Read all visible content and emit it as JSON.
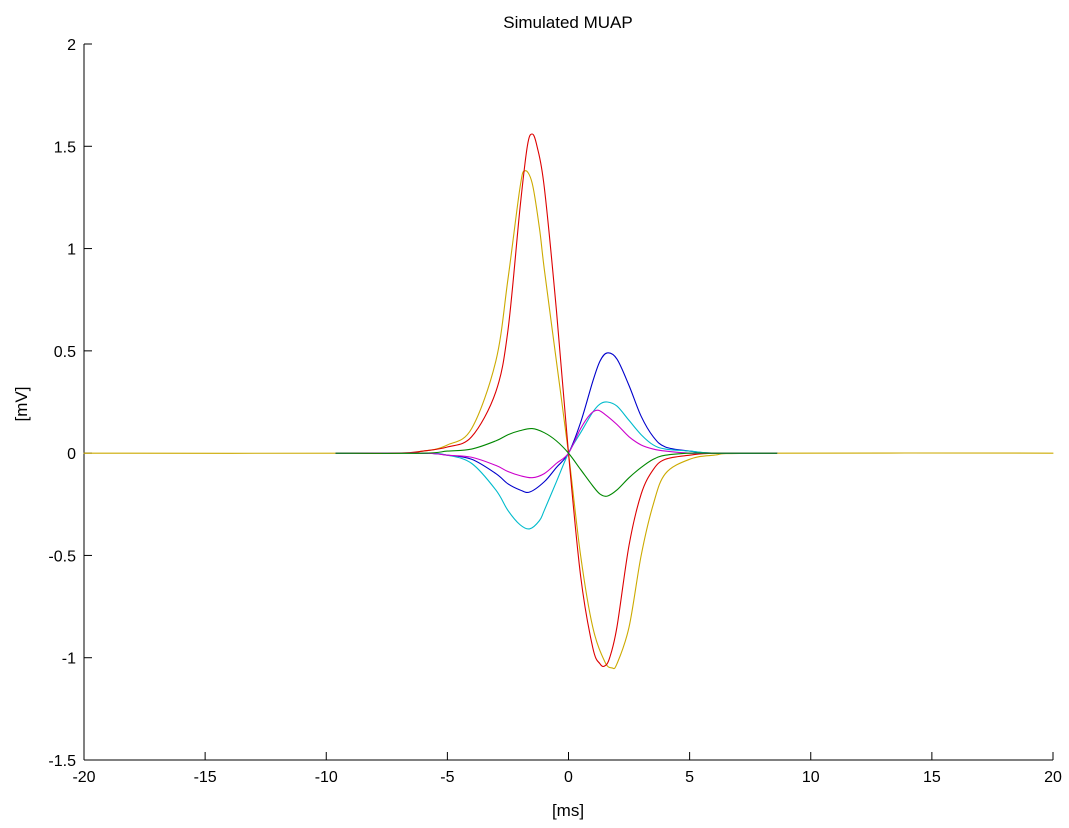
{
  "chart_data": {
    "type": "line",
    "title": "Simulated MUAP",
    "xlabel": "[ms]",
    "ylabel": "[mV]",
    "xlim": [
      -20,
      20
    ],
    "ylim": [
      -1.5,
      2
    ],
    "xticks": [
      -20,
      -15,
      -10,
      -5,
      0,
      5,
      10,
      15,
      20
    ],
    "xtick_labels": [
      "-20",
      "-15",
      "-10",
      "-5",
      "0",
      "5",
      "10",
      "15",
      "20"
    ],
    "yticks": [
      -1.5,
      -1,
      -0.5,
      0,
      0.5,
      1,
      1.5,
      2
    ],
    "ytick_labels": [
      "-1.5",
      "-1",
      "-0.5",
      "0",
      "0.5",
      "1",
      "1.5",
      "2"
    ],
    "grid": false,
    "series": [
      {
        "color": "#ccaa00",
        "x": [
          -20,
          -8,
          -6,
          -5,
          -4,
          -3,
          -2.5,
          -2,
          -1.8,
          -1.5,
          -1.2,
          -1,
          -0.5,
          0,
          0.5,
          1,
          1.5,
          1.8,
          2,
          2.5,
          3,
          3.5,
          4,
          5,
          6,
          8,
          20
        ],
        "y": [
          0,
          0,
          0.01,
          0.04,
          0.12,
          0.45,
          0.85,
          1.3,
          1.38,
          1.32,
          1.1,
          0.9,
          0.45,
          0,
          -0.5,
          -0.85,
          -1.02,
          -1.05,
          -1.03,
          -0.85,
          -0.5,
          -0.25,
          -0.1,
          -0.03,
          -0.01,
          0,
          0
        ]
      },
      {
        "color": "#dd0000",
        "x": [
          -9.6,
          -7,
          -6,
          -5,
          -4,
          -3,
          -2.5,
          -2,
          -1.7,
          -1.5,
          -1.3,
          -1,
          -0.5,
          0,
          0.5,
          1,
          1.3,
          1.5,
          1.7,
          2,
          2.5,
          3,
          3.5,
          4,
          5,
          6,
          8.6
        ],
        "y": [
          0,
          0,
          0.01,
          0.03,
          0.08,
          0.3,
          0.6,
          1.2,
          1.5,
          1.56,
          1.5,
          1.3,
          0.7,
          0,
          -0.6,
          -0.95,
          -1.03,
          -1.04,
          -1.0,
          -0.85,
          -0.45,
          -0.2,
          -0.08,
          -0.03,
          -0.01,
          0,
          0
        ]
      },
      {
        "color": "#0000cc",
        "x": [
          -9.6,
          -6,
          -5,
          -4,
          -3,
          -2.5,
          -2,
          -1.6,
          -1,
          -0.5,
          0,
          0.5,
          1,
          1.3,
          1.6,
          2,
          2.5,
          3,
          3.5,
          4,
          5,
          6,
          8.6
        ],
        "y": [
          0,
          0,
          -0.01,
          -0.03,
          -0.1,
          -0.15,
          -0.18,
          -0.19,
          -0.14,
          -0.07,
          0,
          0.15,
          0.35,
          0.45,
          0.49,
          0.46,
          0.33,
          0.18,
          0.08,
          0.03,
          0.01,
          0,
          0
        ]
      },
      {
        "color": "#00bbcc",
        "x": [
          -9.6,
          -6,
          -5,
          -4,
          -3,
          -2.5,
          -2,
          -1.6,
          -1.2,
          -1,
          -0.5,
          0,
          0.5,
          1,
          1.3,
          1.6,
          2,
          2.5,
          3,
          3.5,
          4,
          5,
          6,
          8.6
        ],
        "y": [
          0,
          0,
          -0.01,
          -0.05,
          -0.18,
          -0.28,
          -0.35,
          -0.37,
          -0.33,
          -0.28,
          -0.14,
          0,
          0.1,
          0.2,
          0.24,
          0.25,
          0.23,
          0.16,
          0.09,
          0.04,
          0.02,
          0.01,
          0,
          0
        ]
      },
      {
        "color": "#cc00cc",
        "x": [
          -9.6,
          -6,
          -5,
          -4,
          -3,
          -2.5,
          -2,
          -1.5,
          -1,
          -0.5,
          0,
          0.5,
          0.9,
          1.2,
          1.5,
          2,
          2.5,
          3,
          3.5,
          4,
          5,
          6,
          8.6
        ],
        "y": [
          0,
          0,
          -0.01,
          -0.02,
          -0.06,
          -0.09,
          -0.11,
          -0.12,
          -0.1,
          -0.05,
          0,
          0.12,
          0.19,
          0.21,
          0.19,
          0.14,
          0.08,
          0.04,
          0.02,
          0.01,
          0,
          0,
          0
        ]
      },
      {
        "color": "#008800",
        "x": [
          -9.6,
          -6,
          -5,
          -4,
          -3,
          -2.5,
          -2,
          -1.5,
          -1,
          -0.5,
          0,
          0.5,
          1,
          1.3,
          1.6,
          2,
          2.5,
          3,
          3.5,
          4,
          5,
          6,
          8.6
        ],
        "y": [
          0,
          0,
          0.01,
          0.02,
          0.06,
          0.09,
          0.11,
          0.12,
          0.1,
          0.06,
          0,
          -0.08,
          -0.16,
          -0.2,
          -0.21,
          -0.18,
          -0.12,
          -0.07,
          -0.03,
          -0.01,
          0,
          0,
          0
        ]
      }
    ]
  }
}
